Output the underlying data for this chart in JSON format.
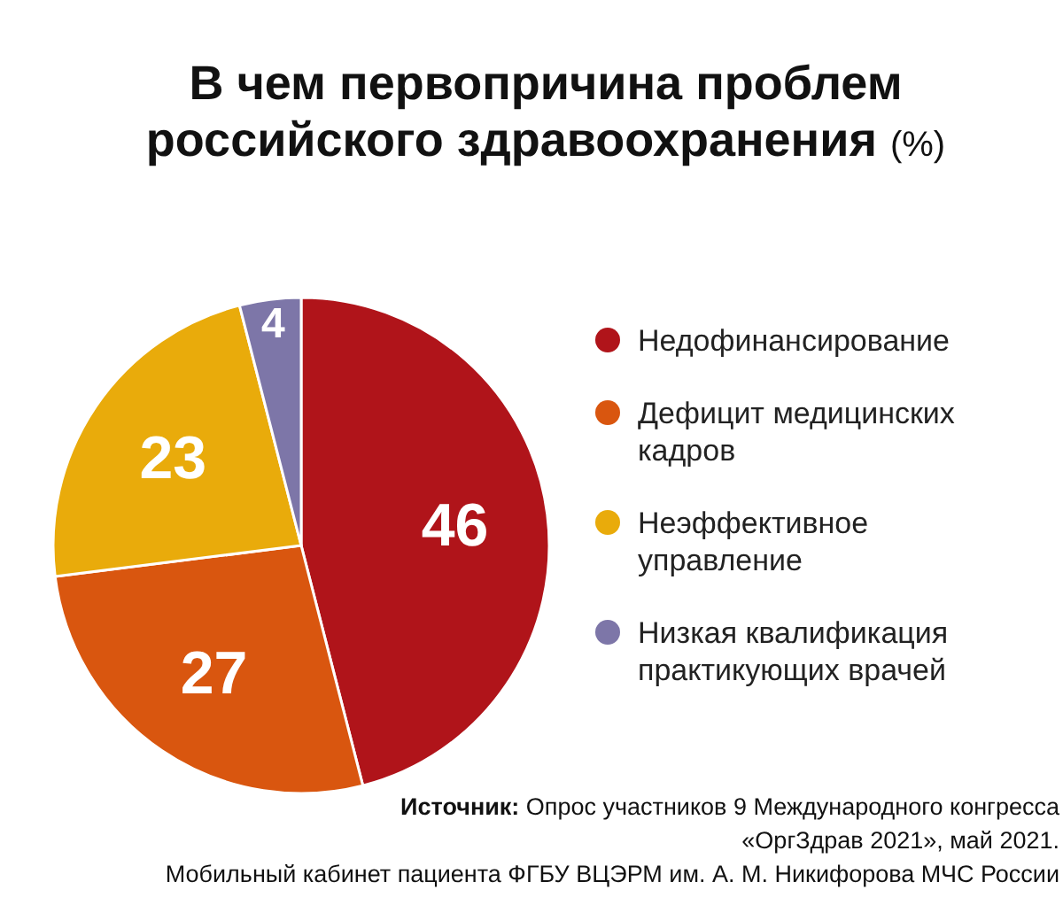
{
  "chart_data": {
    "type": "pie",
    "title": "В чем первопричина проблем\nроссийского здравоохранения (%)",
    "categories": [
      "Недофинансирование",
      "Дефицит медицинских кадров",
      "Неэффективное управление",
      "Низкая квалификация практикующих врачей"
    ],
    "values": [
      46,
      27,
      23,
      4
    ],
    "colors": [
      "#b0141a",
      "#d9560f",
      "#e9ab0b",
      "#7d76a8"
    ],
    "data_labels": true,
    "legend": "right",
    "annotations": [
      "Источник: Опрос участников 9 Международного конгресса",
      "«ОргЗдрав 2021», май 2021.",
      "Мобильный кабинет пациента ФГБУ ВЦЭРМ им. А. М. Никифорова МЧС России"
    ]
  }
}
